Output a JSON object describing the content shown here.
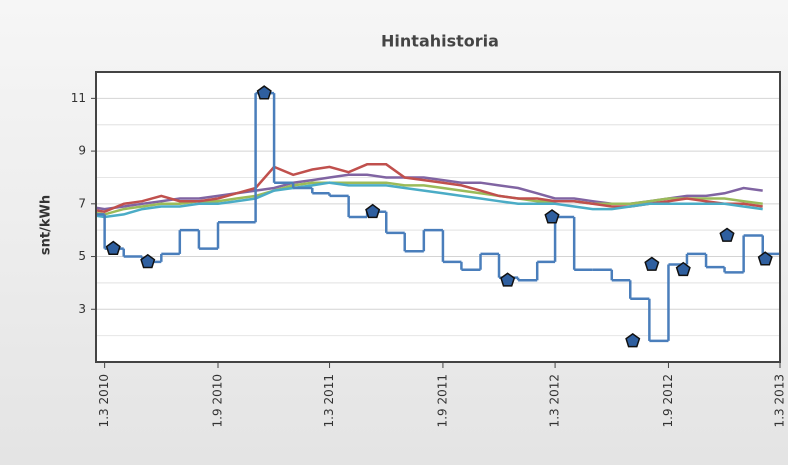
{
  "chart_data": {
    "type": "line",
    "title": "Hintahistoria",
    "y_label": "snt/kWh",
    "ylim": [
      1,
      12
    ],
    "yticks": [
      3,
      5,
      7,
      9,
      11
    ],
    "xlim": [
      "2010-02-15",
      "2013-03-01"
    ],
    "xticks": [
      {
        "value": "2010-03-01",
        "label": "1.3 2010"
      },
      {
        "value": "2010-09-01",
        "label": "1.9 2010"
      },
      {
        "value": "2011-03-01",
        "label": "1.3 2011"
      },
      {
        "value": "2011-09-01",
        "label": "1.9 2011"
      },
      {
        "value": "2012-03-01",
        "label": "1.3 2012"
      },
      {
        "value": "2012-09-01",
        "label": "1.9 2012"
      },
      {
        "value": "2013-03-01",
        "label": "1.3 2013"
      }
    ],
    "grid": true,
    "x": [
      "2010-02-01",
      "2010-03-01",
      "2010-04-01",
      "2010-05-01",
      "2010-06-01",
      "2010-07-01",
      "2010-08-01",
      "2010-09-01",
      "2010-10-01",
      "2010-11-01",
      "2010-12-01",
      "2011-01-01",
      "2011-02-01",
      "2011-03-01",
      "2011-04-01",
      "2011-05-01",
      "2011-06-01",
      "2011-07-01",
      "2011-08-01",
      "2011-09-01",
      "2011-10-01",
      "2011-11-01",
      "2011-12-01",
      "2012-01-01",
      "2012-02-01",
      "2012-03-01",
      "2012-04-01",
      "2012-05-01",
      "2012-06-01",
      "2012-07-01",
      "2012-08-01",
      "2012-09-01",
      "2012-10-01",
      "2012-11-01",
      "2012-12-01",
      "2013-01-01",
      "2013-02-01"
    ],
    "series": [
      {
        "color": "#8064a2",
        "values": [
          6.9,
          6.8,
          6.9,
          7.0,
          7.1,
          7.2,
          7.2,
          7.3,
          7.4,
          7.5,
          7.6,
          7.8,
          7.9,
          8.0,
          8.1,
          8.1,
          8.0,
          8.0,
          8.0,
          7.9,
          7.8,
          7.8,
          7.7,
          7.6,
          7.4,
          7.2,
          7.2,
          7.1,
          7.0,
          7.0,
          7.1,
          7.2,
          7.3,
          7.3,
          7.4,
          7.6,
          7.5
        ]
      },
      {
        "color": "#9bbb59",
        "values": [
          6.7,
          6.6,
          6.8,
          6.9,
          7.0,
          7.0,
          7.1,
          7.1,
          7.2,
          7.3,
          7.5,
          7.7,
          7.8,
          7.8,
          7.8,
          7.8,
          7.8,
          7.7,
          7.7,
          7.6,
          7.5,
          7.4,
          7.3,
          7.2,
          7.1,
          7.1,
          7.1,
          7.0,
          7.0,
          7.0,
          7.1,
          7.2,
          7.2,
          7.2,
          7.2,
          7.1,
          7.0
        ]
      },
      {
        "color": "#c0504d",
        "values": [
          6.8,
          6.7,
          7.0,
          7.1,
          7.3,
          7.1,
          7.1,
          7.2,
          7.4,
          7.6,
          8.4,
          8.1,
          8.3,
          8.4,
          8.2,
          8.5,
          8.5,
          8.0,
          7.9,
          7.8,
          7.7,
          7.5,
          7.3,
          7.2,
          7.2,
          7.1,
          7.1,
          7.0,
          6.9,
          6.9,
          7.0,
          7.1,
          7.2,
          7.1,
          7.0,
          7.0,
          6.9
        ]
      },
      {
        "color": "#4bacc6",
        "values": [
          6.6,
          6.5,
          6.6,
          6.8,
          6.9,
          6.9,
          7.0,
          7.0,
          7.1,
          7.2,
          7.5,
          7.6,
          7.7,
          7.8,
          7.7,
          7.7,
          7.7,
          7.6,
          7.5,
          7.4,
          7.3,
          7.2,
          7.1,
          7.0,
          7.0,
          7.0,
          6.9,
          6.8,
          6.8,
          6.9,
          7.0,
          7.0,
          7.0,
          7.0,
          7.0,
          6.9,
          6.8
        ]
      },
      {
        "color": "#4a7ebb",
        "step": true,
        "values": [
          6.6,
          5.3,
          5.0,
          4.8,
          5.1,
          6.0,
          5.3,
          6.3,
          6.3,
          11.2,
          7.8,
          7.6,
          7.4,
          7.3,
          6.5,
          6.7,
          5.9,
          5.2,
          6.0,
          4.8,
          4.5,
          5.1,
          4.2,
          4.1,
          4.8,
          6.5,
          4.5,
          4.5,
          4.1,
          3.4,
          1.8,
          4.7,
          5.1,
          4.6,
          4.4,
          5.8,
          5.1
        ]
      }
    ],
    "markers": {
      "color": "#2f5f9f",
      "x": [
        "2010-03-15",
        "2010-05-10",
        "2010-11-15",
        "2011-05-10",
        "2011-12-15",
        "2012-02-25",
        "2012-07-05",
        "2012-08-05",
        "2012-09-25",
        "2012-12-05",
        "2013-02-05"
      ],
      "values": [
        5.3,
        4.8,
        11.2,
        6.7,
        4.1,
        6.5,
        1.8,
        4.7,
        4.5,
        5.8,
        4.9
      ]
    }
  }
}
